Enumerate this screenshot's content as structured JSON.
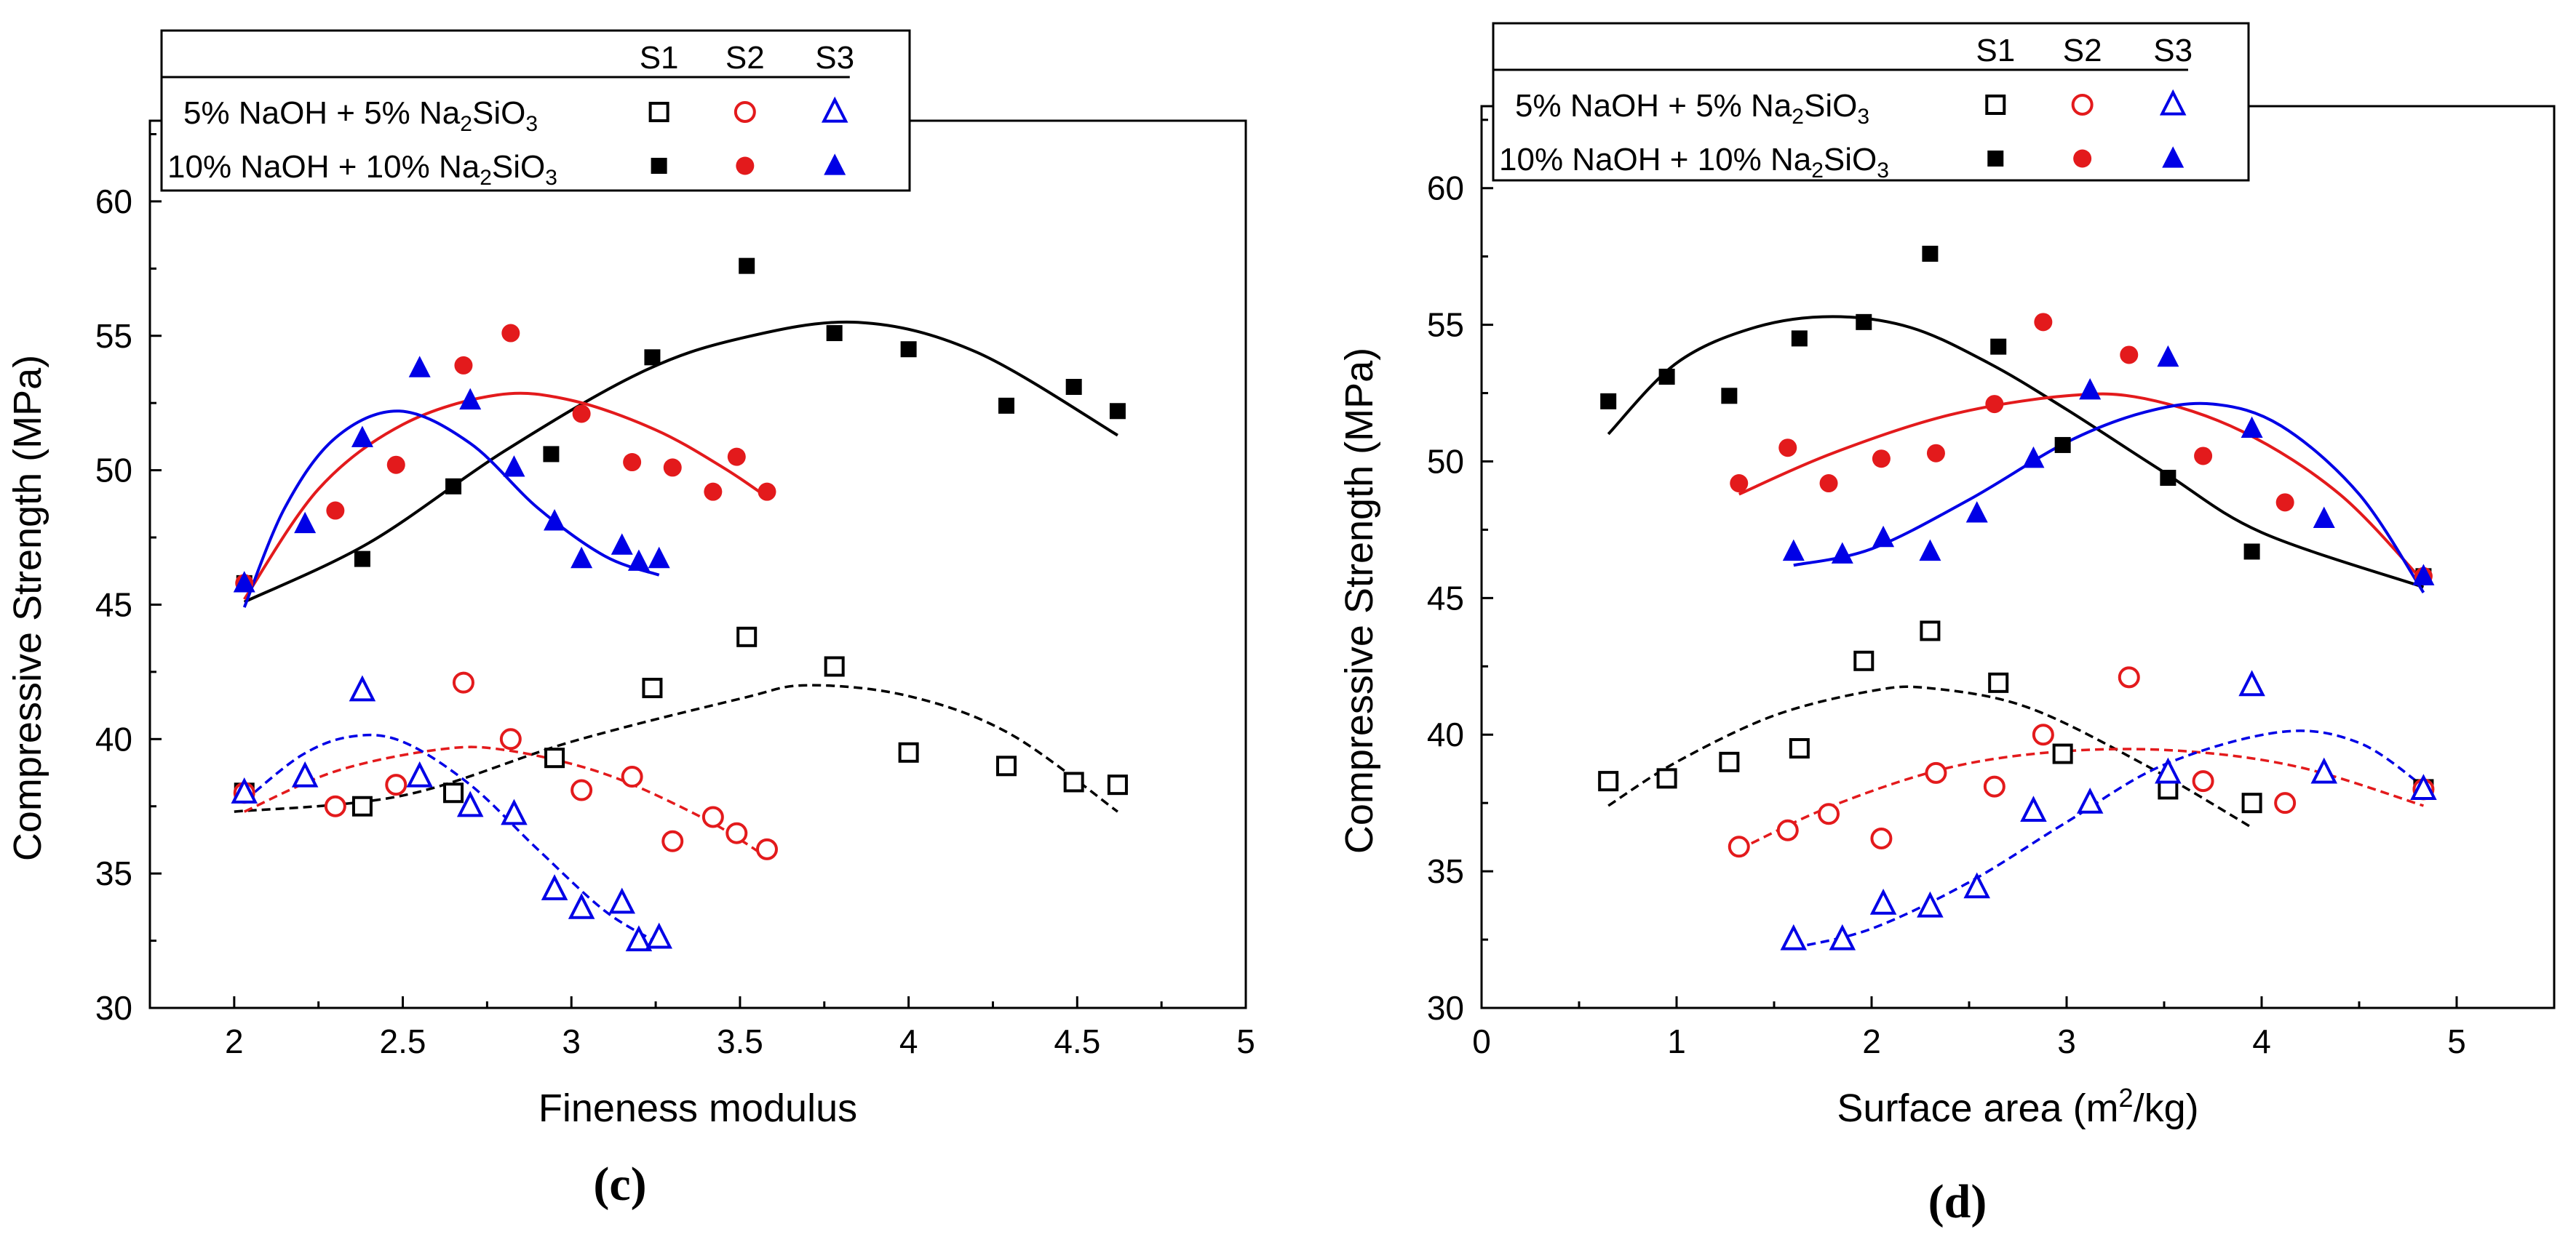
{
  "colors": {
    "black": "#000000",
    "red": "#e31a1c",
    "blue": "#0000e6"
  },
  "legend": {
    "columns": [
      "S1",
      "S2",
      "S3"
    ],
    "rows": [
      {
        "label": "5% NaOH +  5% Na",
        "sub": "2",
        "tail": "SiO",
        "sub2": "3"
      },
      {
        "label": "10% NaOH + 10% Na",
        "sub": "2",
        "tail": "SiO",
        "sub2": "3"
      }
    ]
  },
  "chart_data": [
    {
      "type": "scatter",
      "panel": "(c)",
      "xlabel": "Fineness modulus",
      "ylabel": "Compressive Strength (MPa)",
      "xlim": [
        1.75,
        5.0
      ],
      "ylim": [
        30,
        63
      ],
      "xticks": [
        2,
        2.5,
        3,
        3.5,
        4,
        4.5,
        5
      ],
      "xtick_labels": [
        "2",
        "2.5",
        "3",
        "3.5",
        "4",
        "4.5",
        "5"
      ],
      "yticks": [
        30,
        35,
        40,
        45,
        50,
        55,
        60
      ],
      "ytick_labels": [
        "30",
        "35",
        "40",
        "45",
        "50",
        "55",
        "60"
      ],
      "series": [
        {
          "name": "S1 5%",
          "marker": "square-open",
          "color": "black",
          "x": [
            2.03,
            2.38,
            2.65,
            2.95,
            3.24,
            3.52,
            3.78,
            4.0,
            4.29,
            4.49,
            4.62
          ],
          "y": [
            38.0,
            37.5,
            38.0,
            39.3,
            41.9,
            43.8,
            42.7,
            39.5,
            39.0,
            38.4,
            38.3
          ]
        },
        {
          "name": "S2 5%",
          "marker": "circle-open",
          "color": "red",
          "x": [
            2.03,
            2.3,
            2.48,
            2.68,
            2.82,
            3.03,
            3.18,
            3.3,
            3.42,
            3.49,
            3.58
          ],
          "y": [
            38.0,
            37.5,
            38.3,
            42.1,
            40.0,
            38.1,
            38.6,
            36.2,
            37.1,
            36.5,
            35.9
          ]
        },
        {
          "name": "S3 5%",
          "marker": "triangle-open",
          "color": "blue",
          "x": [
            2.03,
            2.21,
            2.38,
            2.55,
            2.7,
            2.83,
            2.95,
            3.03,
            3.15,
            3.2,
            3.26
          ],
          "y": [
            38.0,
            38.6,
            41.8,
            38.6,
            37.5,
            37.2,
            34.4,
            33.7,
            33.9,
            32.5,
            32.6
          ]
        },
        {
          "name": "S1 10%",
          "marker": "square-filled",
          "color": "black",
          "x": [
            2.03,
            2.38,
            2.65,
            2.94,
            3.24,
            3.52,
            3.78,
            4.0,
            4.29,
            4.49,
            4.62
          ],
          "y": [
            45.8,
            46.7,
            49.4,
            50.6,
            54.2,
            57.6,
            55.1,
            54.5,
            52.4,
            53.1,
            52.2
          ]
        },
        {
          "name": "S2 10%",
          "marker": "circle-filled",
          "color": "red",
          "x": [
            2.03,
            2.3,
            2.48,
            2.68,
            2.82,
            3.03,
            3.18,
            3.3,
            3.42,
            3.49,
            3.58
          ],
          "y": [
            45.8,
            48.5,
            50.2,
            53.9,
            55.1,
            52.1,
            50.3,
            50.1,
            49.2,
            50.5,
            49.2
          ]
        },
        {
          "name": "S3 10%",
          "marker": "triangle-filled",
          "color": "blue",
          "x": [
            2.03,
            2.21,
            2.38,
            2.55,
            2.7,
            2.83,
            2.95,
            3.03,
            3.15,
            3.2,
            3.26
          ],
          "y": [
            45.8,
            48.0,
            51.2,
            53.8,
            52.6,
            50.1,
            48.1,
            46.7,
            47.2,
            46.6,
            46.7
          ]
        }
      ],
      "fits": [
        {
          "name": "S1 5% fit",
          "color": "black",
          "style": "dashed",
          "x": [
            2.0,
            2.5,
            3.0,
            3.5,
            3.7,
            4.0,
            4.3,
            4.62
          ],
          "y": [
            37.3,
            37.9,
            39.9,
            41.5,
            42.0,
            41.6,
            40.2,
            37.3
          ]
        },
        {
          "name": "S2 5% fit",
          "color": "red",
          "style": "dashed",
          "x": [
            2.03,
            2.3,
            2.6,
            2.8,
            3.1,
            3.4,
            3.58
          ],
          "y": [
            37.3,
            38.8,
            39.6,
            39.6,
            38.7,
            37.0,
            35.6
          ]
        },
        {
          "name": "S3 5% fit",
          "color": "blue",
          "style": "dashed",
          "x": [
            2.03,
            2.2,
            2.35,
            2.5,
            2.7,
            2.9,
            3.1,
            3.26
          ],
          "y": [
            37.7,
            39.4,
            40.1,
            39.9,
            38.3,
            35.9,
            33.6,
            32.4
          ]
        },
        {
          "name": "S1 10% fit",
          "color": "black",
          "style": "solid",
          "x": [
            2.03,
            2.4,
            2.8,
            3.2,
            3.5,
            3.85,
            4.2,
            4.62
          ],
          "y": [
            45.1,
            47.3,
            50.7,
            53.6,
            54.9,
            55.5,
            54.4,
            51.3
          ]
        },
        {
          "name": "S2 10% fit",
          "color": "red",
          "style": "solid",
          "x": [
            2.03,
            2.25,
            2.5,
            2.78,
            3.0,
            3.25,
            3.45,
            3.58
          ],
          "y": [
            45.2,
            49.3,
            51.7,
            52.8,
            52.6,
            51.5,
            50.1,
            49.0
          ]
        },
        {
          "name": "S3 10% fit",
          "color": "blue",
          "style": "solid",
          "x": [
            2.03,
            2.15,
            2.3,
            2.49,
            2.7,
            2.9,
            3.1,
            3.26
          ],
          "y": [
            44.9,
            48.6,
            51.2,
            52.2,
            51.0,
            48.6,
            46.8,
            46.1
          ]
        }
      ]
    },
    {
      "type": "scatter",
      "panel": "(d)",
      "xlabel": "Surface area (m",
      "xlabel_sup": "2",
      "xlabel_tail": "/kg)",
      "ylabel": "Compressive Strength (MPa)",
      "xlim": [
        0,
        5.5
      ],
      "ylim": [
        30,
        63
      ],
      "xticks": [
        0,
        1,
        2,
        3,
        4,
        5
      ],
      "xtick_labels": [
        "0",
        "1",
        "2",
        "3",
        "4",
        "5"
      ],
      "yticks": [
        30,
        35,
        40,
        45,
        50,
        55,
        60
      ],
      "ytick_labels": [
        "30",
        "35",
        "40",
        "45",
        "50",
        "55",
        "60"
      ],
      "series": [
        {
          "name": "S1 5%",
          "marker": "square-open",
          "color": "black",
          "x": [
            0.65,
            0.95,
            1.27,
            1.63,
            1.96,
            2.3,
            2.65,
            2.98,
            3.52,
            3.95,
            4.83
          ],
          "y": [
            38.3,
            38.4,
            39.0,
            39.5,
            42.7,
            43.8,
            41.9,
            39.3,
            38.0,
            37.5,
            38.0
          ]
        },
        {
          "name": "S2 5%",
          "marker": "circle-open",
          "color": "red",
          "x": [
            1.32,
            1.57,
            1.78,
            2.05,
            2.33,
            2.63,
            2.88,
            3.32,
            3.7,
            4.12,
            4.83
          ],
          "y": [
            35.9,
            36.5,
            37.1,
            36.2,
            38.6,
            38.1,
            40.0,
            42.1,
            38.3,
            37.5,
            38.0
          ]
        },
        {
          "name": "S3 5%",
          "marker": "triangle-open",
          "color": "blue",
          "x": [
            1.6,
            1.85,
            2.06,
            2.3,
            2.54,
            2.83,
            3.12,
            3.52,
            3.95,
            4.32,
            4.83
          ],
          "y": [
            32.5,
            32.5,
            33.8,
            33.7,
            34.4,
            37.2,
            37.5,
            38.6,
            41.8,
            38.6,
            38.0
          ]
        },
        {
          "name": "S1 10%",
          "marker": "square-filled",
          "color": "black",
          "x": [
            0.65,
            0.95,
            1.27,
            1.63,
            1.96,
            2.3,
            2.65,
            2.98,
            3.52,
            3.95,
            4.83
          ],
          "y": [
            52.2,
            53.1,
            52.4,
            54.5,
            55.1,
            57.6,
            54.2,
            50.6,
            49.4,
            46.7,
            45.8
          ]
        },
        {
          "name": "S2 10%",
          "marker": "circle-filled",
          "color": "red",
          "x": [
            1.32,
            1.57,
            1.78,
            2.05,
            2.33,
            2.63,
            2.88,
            3.32,
            3.7,
            4.12,
            4.83
          ],
          "y": [
            49.2,
            50.5,
            49.2,
            50.1,
            50.3,
            52.1,
            55.1,
            53.9,
            50.2,
            48.5,
            45.8
          ]
        },
        {
          "name": "S3 10%",
          "marker": "triangle-filled",
          "color": "blue",
          "x": [
            1.6,
            1.85,
            2.06,
            2.3,
            2.54,
            2.83,
            3.12,
            3.52,
            3.95,
            4.32,
            4.83
          ],
          "y": [
            46.7,
            46.6,
            47.2,
            46.7,
            48.1,
            50.1,
            52.6,
            53.8,
            51.2,
            47.9,
            45.8
          ]
        }
      ],
      "fits": [
        {
          "name": "S1 5% fit",
          "color": "black",
          "style": "dashed",
          "x": [
            0.65,
            1.0,
            1.5,
            2.0,
            2.3,
            2.8,
            3.4,
            3.95
          ],
          "y": [
            37.4,
            39.0,
            40.7,
            41.6,
            41.7,
            41.0,
            38.9,
            36.6
          ]
        },
        {
          "name": "S2 5% fit",
          "color": "red",
          "style": "dashed",
          "x": [
            1.32,
            1.8,
            2.4,
            3.0,
            3.6,
            4.2,
            4.83
          ],
          "y": [
            35.8,
            37.4,
            38.8,
            39.4,
            39.4,
            38.8,
            37.4
          ]
        },
        {
          "name": "S3 5% fit",
          "color": "blue",
          "style": "dashed",
          "x": [
            1.6,
            2.0,
            2.5,
            3.0,
            3.5,
            4.1,
            4.5,
            4.83
          ],
          "y": [
            32.2,
            32.9,
            34.6,
            36.8,
            38.9,
            40.1,
            39.7,
            38.1
          ]
        },
        {
          "name": "S1 10% fit",
          "color": "black",
          "style": "solid",
          "x": [
            0.65,
            1.0,
            1.4,
            1.8,
            2.2,
            2.6,
            3.0,
            3.5,
            4.0,
            4.83
          ],
          "y": [
            51.0,
            53.6,
            54.9,
            55.3,
            54.9,
            53.6,
            51.9,
            49.6,
            47.4,
            45.4
          ]
        },
        {
          "name": "S2 10% fit",
          "color": "red",
          "style": "solid",
          "x": [
            1.32,
            1.8,
            2.4,
            3.0,
            3.4,
            3.9,
            4.4,
            4.83
          ],
          "y": [
            48.8,
            50.3,
            51.7,
            52.4,
            52.3,
            51.1,
            48.8,
            45.6
          ]
        },
        {
          "name": "S3 10% fit",
          "color": "blue",
          "style": "solid",
          "x": [
            1.6,
            2.0,
            2.5,
            3.0,
            3.4,
            3.75,
            4.1,
            4.5,
            4.83
          ],
          "y": [
            46.2,
            46.8,
            48.6,
            50.7,
            51.8,
            52.1,
            51.3,
            48.8,
            45.2
          ]
        }
      ]
    }
  ]
}
